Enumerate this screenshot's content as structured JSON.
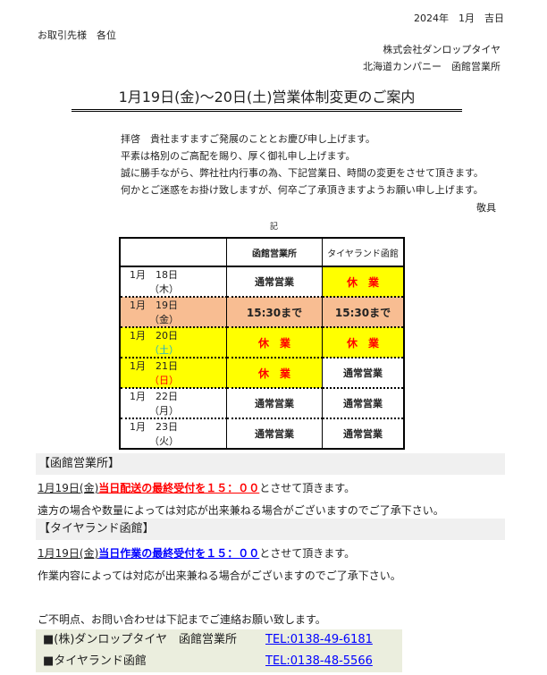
{
  "header": {
    "date": "2024年　1月　吉日",
    "addressee": "お取引先様　各位",
    "company": "株式会社ダンロップタイヤ",
    "branch": "北海道カンパニー　函館営業所"
  },
  "title": "1月19日(金)～20日(土)営業体制変更のご案内",
  "greeting": [
    "拝啓　貴社ますますご発展のこととお慶び申し上げます。",
    "平素は格別のご高配を賜り、厚く御礼申し上げます。",
    "誠に勝手ながら、弊社社内行事の為、下記営業日、時間の変更をさせて頂きます。",
    "何かとご迷惑をお掛け致しますが、何卒ご了承頂きますようお願い申し上げます。"
  ],
  "closing": "敬具",
  "ki": "記",
  "table": {
    "headers": [
      "",
      "函館営業所",
      "タイヤランド函館"
    ],
    "rows": [
      {
        "date": "1月　18日",
        "day": "（木）",
        "hakodate": "通常営業",
        "tireland": "休　業"
      },
      {
        "date": "1月　19日",
        "day": "（金）",
        "hakodate": "15:30まで",
        "tireland": "15:30まで"
      },
      {
        "date": "1月　20日",
        "day": "（土）",
        "hakodate": "休　業",
        "tireland": "休　業"
      },
      {
        "date": "1月　21日",
        "day": "（日）",
        "hakodate": "休　業",
        "tireland": "通常営業"
      },
      {
        "date": "1月　22日",
        "day": "（月）",
        "hakodate": "通常営業",
        "tireland": "通常営業"
      },
      {
        "date": "1月　23日",
        "day": "（火）",
        "hakodate": "通常営業",
        "tireland": "通常営業"
      }
    ]
  },
  "sections": [
    {
      "heading": "【函館営業所】",
      "date": "1月19日(金)",
      "highlight": "当日配送の最終受付を１５：００",
      "rest": "とさせて頂きます。",
      "note": "遠方の場合や数量によっては対応が出来兼ねる場合がございますのでご了承下さい。",
      "color": "#ff0000"
    },
    {
      "heading": "【タイヤランド函館】",
      "date": "1月19日(金)",
      "highlight": "当日作業の最終受付を１５：００",
      "rest": "とさせて頂きます。",
      "note": "作業内容によっては対応が出来兼ねる場合がございますのでご了承下さい。",
      "color": "#0000ff"
    }
  ],
  "contact": {
    "intro": "ご不明点、お問い合わせは下記までご連絡お願い致します。",
    "items": [
      {
        "name": "■(株)ダンロップタイヤ　函館営業所",
        "tel": "TEL:0138-49-6181"
      },
      {
        "name": "■タイヤランド函館",
        "tel": "TEL:0138-48-5566"
      }
    ]
  }
}
